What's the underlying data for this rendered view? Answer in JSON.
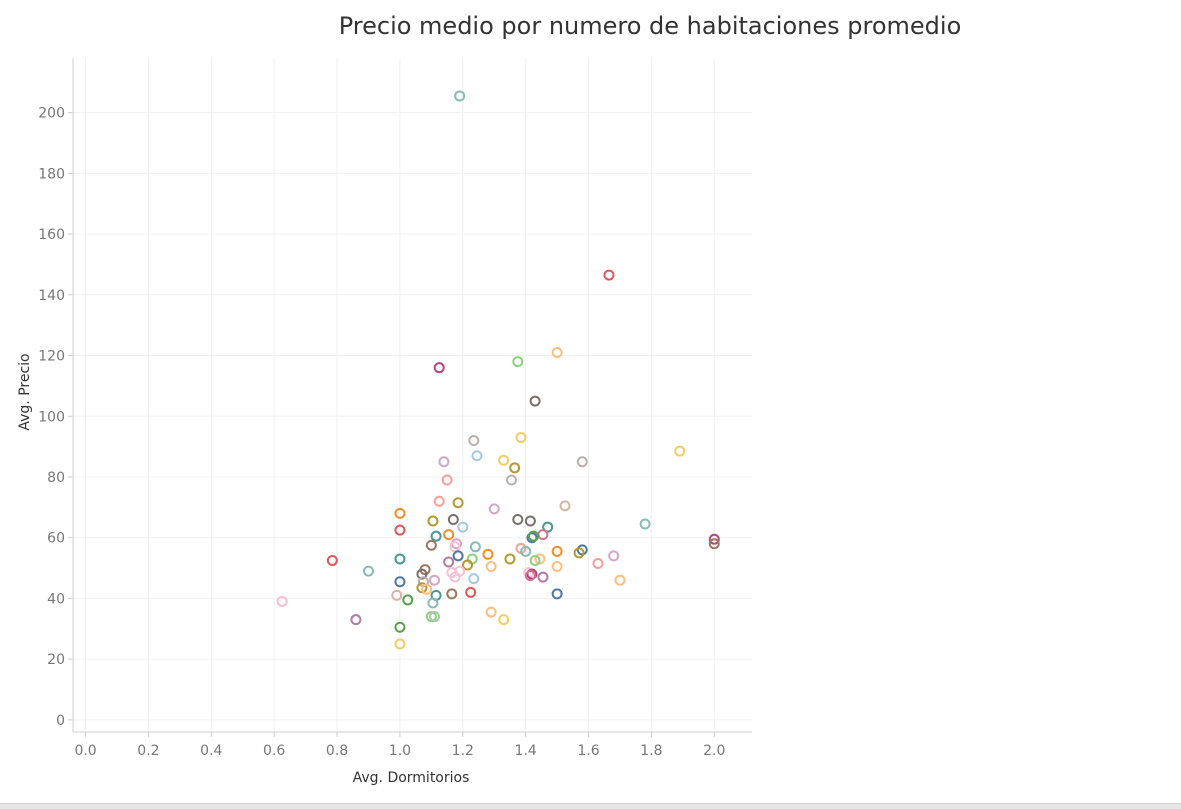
{
  "chart_data": {
    "type": "scatter",
    "title": "Precio medio por numero de habitaciones promedio",
    "xlabel": "Avg. Dormitorios",
    "ylabel": "Avg. Precio",
    "xlim": [
      -0.04,
      2.12
    ],
    "ylim": [
      -4,
      218
    ],
    "xticks": [
      "0.0",
      "0.2",
      "0.4",
      "0.6",
      "0.8",
      "1.0",
      "1.2",
      "1.4",
      "1.6",
      "1.8",
      "2.0"
    ],
    "yticks": [
      "0",
      "20",
      "40",
      "60",
      "80",
      "100",
      "120",
      "140",
      "160",
      "180",
      "200"
    ],
    "grid": true,
    "marker": "hollow-circle",
    "points": [
      {
        "x": 1.19,
        "y": 205.5,
        "color": "#86bcb6"
      },
      {
        "x": 1.665,
        "y": 146.5,
        "color": "#e15759"
      },
      {
        "x": 1.5,
        "y": 121,
        "color": "#ffbe7d"
      },
      {
        "x": 1.375,
        "y": 118,
        "color": "#8cd17d"
      },
      {
        "x": 1.125,
        "y": 116,
        "color": "#b6467a"
      },
      {
        "x": 1.43,
        "y": 105,
        "color": "#79706e"
      },
      {
        "x": 1.385,
        "y": 93,
        "color": "#f1ce63"
      },
      {
        "x": 1.235,
        "y": 92,
        "color": "#bab0ac"
      },
      {
        "x": 1.89,
        "y": 88.5,
        "color": "#f1ce63"
      },
      {
        "x": 1.245,
        "y": 87,
        "color": "#a0cbe8"
      },
      {
        "x": 1.33,
        "y": 85.5,
        "color": "#f1ce63"
      },
      {
        "x": 1.14,
        "y": 85,
        "color": "#d4a6c8"
      },
      {
        "x": 1.58,
        "y": 85,
        "color": "#bab0ac"
      },
      {
        "x": 1.365,
        "y": 83,
        "color": "#b6992d"
      },
      {
        "x": 1.15,
        "y": 79,
        "color": "#ff9d9a"
      },
      {
        "x": 1.355,
        "y": 79,
        "color": "#bab0ac"
      },
      {
        "x": 1.125,
        "y": 72,
        "color": "#ff9d9a"
      },
      {
        "x": 1.185,
        "y": 71.5,
        "color": "#b6992d"
      },
      {
        "x": 1.525,
        "y": 70.5,
        "color": "#d7b5a6"
      },
      {
        "x": 1.3,
        "y": 69.5,
        "color": "#d4a6c8"
      },
      {
        "x": 1.0,
        "y": 68,
        "color": "#f28e2b"
      },
      {
        "x": 1.375,
        "y": 66,
        "color": "#79706e"
      },
      {
        "x": 1.415,
        "y": 65.5,
        "color": "#79706e"
      },
      {
        "x": 1.105,
        "y": 65.5,
        "color": "#b6992d"
      },
      {
        "x": 1.17,
        "y": 66,
        "color": "#79706e"
      },
      {
        "x": 1.78,
        "y": 64.5,
        "color": "#86bcb6"
      },
      {
        "x": 1.47,
        "y": 63.5,
        "color": "#499894"
      },
      {
        "x": 1.2,
        "y": 63.5,
        "color": "#a0cbe8"
      },
      {
        "x": 1.0,
        "y": 62.5,
        "color": "#e15759"
      },
      {
        "x": 1.155,
        "y": 61,
        "color": "#f28e2b"
      },
      {
        "x": 1.115,
        "y": 60.5,
        "color": "#499894"
      },
      {
        "x": 1.455,
        "y": 61,
        "color": "#d37295"
      },
      {
        "x": 1.42,
        "y": 60,
        "color": "#4e79a7"
      },
      {
        "x": 1.425,
        "y": 60.5,
        "color": "#59a14f"
      },
      {
        "x": 2.0,
        "y": 59.5,
        "color": "#b6467a"
      },
      {
        "x": 2.0,
        "y": 58,
        "color": "#9d7660"
      },
      {
        "x": 1.18,
        "y": 58,
        "color": "#d4a6c8"
      },
      {
        "x": 1.1,
        "y": 57.5,
        "color": "#9d7660"
      },
      {
        "x": 1.24,
        "y": 57,
        "color": "#86bcb6"
      },
      {
        "x": 1.175,
        "y": 57,
        "color": "#fabfd2"
      },
      {
        "x": 1.385,
        "y": 56.5,
        "color": "#ff9d9a"
      },
      {
        "x": 1.58,
        "y": 56,
        "color": "#4e79a7"
      },
      {
        "x": 1.57,
        "y": 55,
        "color": "#b6992d"
      },
      {
        "x": 1.5,
        "y": 55.5,
        "color": "#f28e2b"
      },
      {
        "x": 1.4,
        "y": 55.5,
        "color": "#86bcb6"
      },
      {
        "x": 1.28,
        "y": 54.5,
        "color": "#f28e2b"
      },
      {
        "x": 1.185,
        "y": 54,
        "color": "#4e79a7"
      },
      {
        "x": 1.68,
        "y": 54,
        "color": "#d4a6c8"
      },
      {
        "x": 1.35,
        "y": 53,
        "color": "#b6992d"
      },
      {
        "x": 1.445,
        "y": 53,
        "color": "#ffbe7d"
      },
      {
        "x": 1.43,
        "y": 52.5,
        "color": "#8cd17d"
      },
      {
        "x": 1.0,
        "y": 53,
        "color": "#499894"
      },
      {
        "x": 1.23,
        "y": 53,
        "color": "#8cd17d"
      },
      {
        "x": 1.155,
        "y": 52,
        "color": "#b07aa1"
      },
      {
        "x": 1.63,
        "y": 51.5,
        "color": "#ff9d9a"
      },
      {
        "x": 1.215,
        "y": 51,
        "color": "#b6992d"
      },
      {
        "x": 1.29,
        "y": 50.5,
        "color": "#ffbe7d"
      },
      {
        "x": 1.5,
        "y": 50.5,
        "color": "#ffbe7d"
      },
      {
        "x": 1.08,
        "y": 49.5,
        "color": "#9d7660"
      },
      {
        "x": 0.9,
        "y": 49,
        "color": "#86bcb6"
      },
      {
        "x": 1.19,
        "y": 49,
        "color": "#fabfd2"
      },
      {
        "x": 1.165,
        "y": 48.5,
        "color": "#fabfd2"
      },
      {
        "x": 1.41,
        "y": 48.5,
        "color": "#fabfd2"
      },
      {
        "x": 1.42,
        "y": 48,
        "color": "#b6467a"
      },
      {
        "x": 1.07,
        "y": 48,
        "color": "#79706e"
      },
      {
        "x": 1.415,
        "y": 47.5,
        "color": "#d37295"
      },
      {
        "x": 1.455,
        "y": 47,
        "color": "#b07aa1"
      },
      {
        "x": 1.175,
        "y": 47,
        "color": "#fabfd2"
      },
      {
        "x": 1.235,
        "y": 46.5,
        "color": "#a0cbe8"
      },
      {
        "x": 1.11,
        "y": 46,
        "color": "#d4a6c8"
      },
      {
        "x": 1.7,
        "y": 46,
        "color": "#ffbe7d"
      },
      {
        "x": 1.075,
        "y": 45.5,
        "color": "#bab0ac"
      },
      {
        "x": 1.0,
        "y": 45.5,
        "color": "#4e79a7"
      },
      {
        "x": 1.07,
        "y": 43.5,
        "color": "#b6992d"
      },
      {
        "x": 1.085,
        "y": 43,
        "color": "#ffbe7d"
      },
      {
        "x": 1.5,
        "y": 41.5,
        "color": "#4e79a7"
      },
      {
        "x": 1.225,
        "y": 42,
        "color": "#e15759"
      },
      {
        "x": 1.165,
        "y": 41.5,
        "color": "#9d7660"
      },
      {
        "x": 1.115,
        "y": 41,
        "color": "#499894"
      },
      {
        "x": 0.99,
        "y": 41,
        "color": "#d7b5a6"
      },
      {
        "x": 1.025,
        "y": 39.5,
        "color": "#59a14f"
      },
      {
        "x": 1.105,
        "y": 38.5,
        "color": "#86bcb6"
      },
      {
        "x": 0.625,
        "y": 39,
        "color": "#fabfd2"
      },
      {
        "x": 1.29,
        "y": 35.5,
        "color": "#ffbe7d"
      },
      {
        "x": 1.1,
        "y": 34,
        "color": "#8cd17d"
      },
      {
        "x": 1.11,
        "y": 34,
        "color": "#a5c8a0"
      },
      {
        "x": 0.86,
        "y": 33,
        "color": "#b07aa1"
      },
      {
        "x": 1.33,
        "y": 33,
        "color": "#f1ce63"
      },
      {
        "x": 1.0,
        "y": 30.5,
        "color": "#59a14f"
      },
      {
        "x": 1.0,
        "y": 25,
        "color": "#f1ce63"
      },
      {
        "x": 0.785,
        "y": 52.5,
        "color": "#e15759"
      }
    ]
  }
}
